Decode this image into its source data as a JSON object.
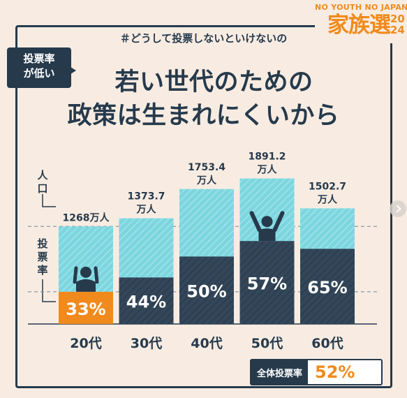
{
  "logo": {
    "top": "NO YOUTH NO JAPAN",
    "main": "家族選",
    "year_top": "20",
    "year_bottom": "24"
  },
  "hashtag": "＃どうして投票しないといけないの",
  "badge": {
    "line1": "投票率",
    "line2": "が低い"
  },
  "title": {
    "line1": "若い世代のための",
    "line2": "政策は生まれにくいから"
  },
  "axis_labels": {
    "population": "人口",
    "turnout": "投票率"
  },
  "total": {
    "label": "全体投票率",
    "value": "52%"
  },
  "colors": {
    "navy": "#263a4c",
    "population_fill": "#7dd6df",
    "turnout_fill": "#34475a",
    "highlight": "#f18a1c",
    "background": "#f8ece2"
  },
  "chart_data": {
    "type": "bar",
    "categories": [
      "20代",
      "30代",
      "40代",
      "50代",
      "60代"
    ],
    "series": [
      {
        "name": "人口",
        "values": [
          1268,
          1373.7,
          1753.4,
          1891.2,
          1502.7
        ],
        "labels": [
          "1268万人",
          "1373.7\n万人",
          "1753.4\n万人",
          "1891.2\n万人",
          "1502.7\n万人"
        ]
      },
      {
        "name": "投票率",
        "values": [
          33,
          44,
          50,
          57,
          65
        ],
        "labels": [
          "33%",
          "44%",
          "50%",
          "57%",
          "65%"
        ]
      }
    ],
    "highlight_index": 0,
    "icons": [
      "head-in-hands-icon",
      "",
      "",
      "cheering-person-icon",
      ""
    ]
  }
}
